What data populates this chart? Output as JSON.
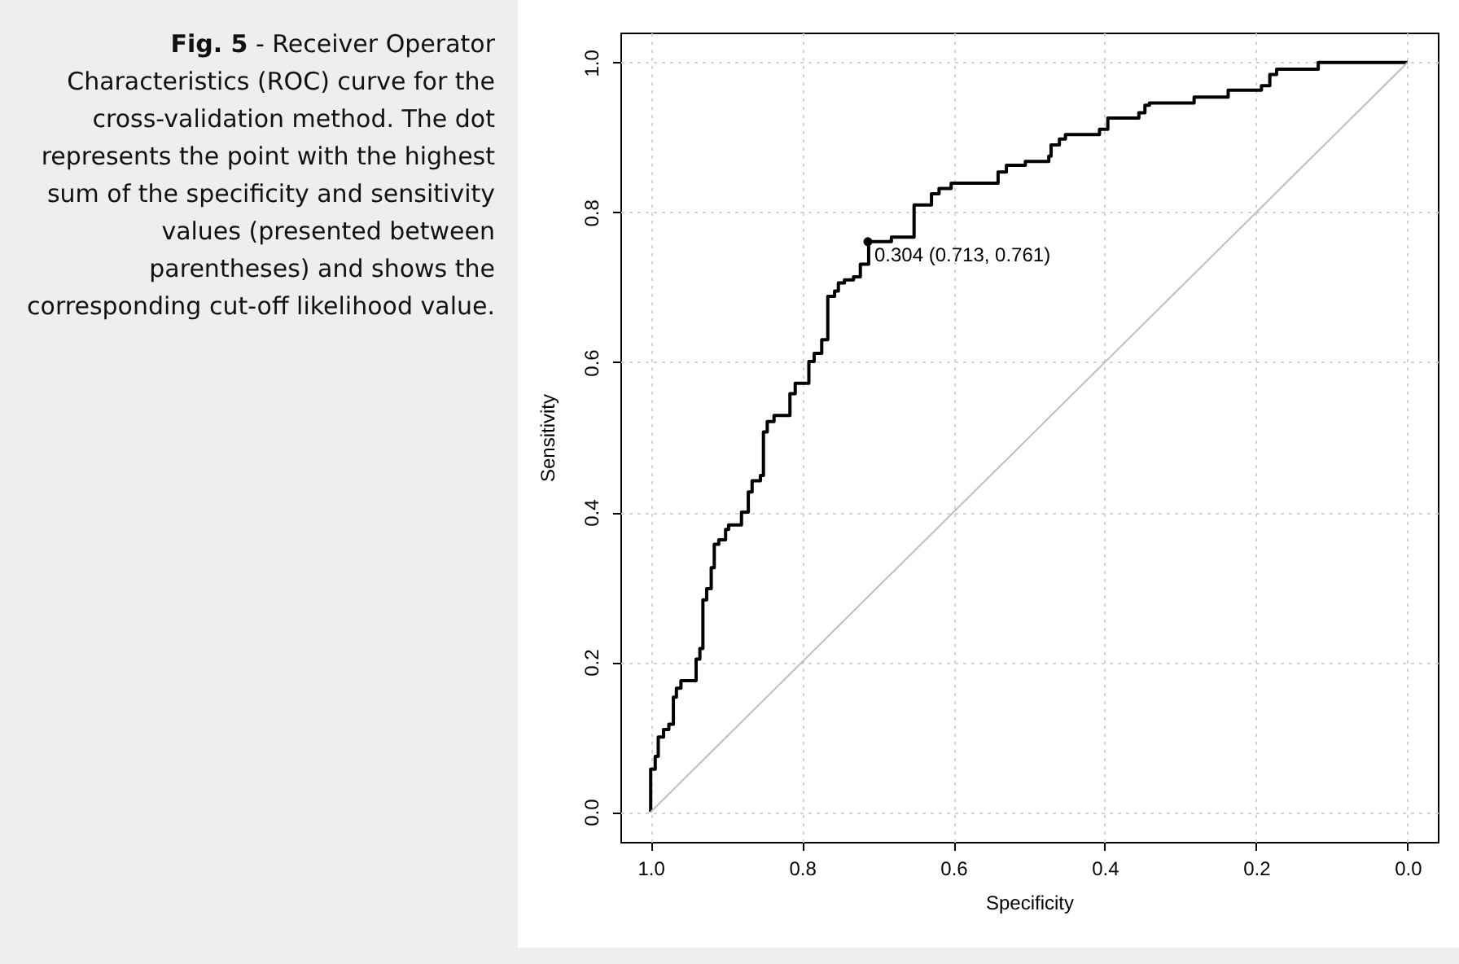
{
  "chart_data": {
    "type": "step",
    "xlabel": "Specificity",
    "ylabel": "Sensitivity",
    "xlim": [
      1.04,
      -0.04
    ],
    "ylim": [
      -0.04,
      1.04
    ],
    "xticks": [
      {
        "value": 1,
        "label": "1.0"
      },
      0.8,
      0.6,
      0.4,
      0.2,
      {
        "value": 0,
        "label": "0.0"
      }
    ],
    "yticks": [
      {
        "value": 0,
        "label": "0.0"
      },
      0.2,
      0.4,
      0.6,
      0.8,
      {
        "value": 1,
        "label": "1.0"
      }
    ],
    "grid": true,
    "series": [
      {
        "color": "#000000",
        "x": [
          1,
          0.994,
          0.99,
          0.983,
          0.976,
          0.97,
          0.966,
          0.96,
          0.94,
          0.935,
          0.931,
          0.926,
          0.92,
          0.916,
          0.91,
          0.901,
          0.897,
          0.88,
          0.871,
          0.866,
          0.855,
          0.851,
          0.846,
          0.837,
          0.816,
          0.809,
          0.791,
          0.784,
          0.774,
          0.766,
          0.757,
          0.752,
          0.744,
          0.732,
          0.723,
          0.712,
          0.682,
          0.652,
          0.629,
          0.619,
          0.603,
          0.541,
          0.53,
          0.505,
          0.474,
          0.471,
          0.46,
          0.452,
          0.407,
          0.396,
          0.355,
          0.347,
          0.341,
          0.282,
          0.237,
          0.193,
          0.182,
          0.173,
          0.118,
          0
        ],
        "values": [
          0,
          0.057,
          0.074,
          0.1,
          0.11,
          0.117,
          0.153,
          0.165,
          0.175,
          0.204,
          0.218,
          0.283,
          0.298,
          0.326,
          0.357,
          0.363,
          0.377,
          0.383,
          0.4,
          0.427,
          0.442,
          0.449,
          0.507,
          0.521,
          0.529,
          0.558,
          0.572,
          0.601,
          0.612,
          0.63,
          0.688,
          0.695,
          0.706,
          0.71,
          0.714,
          0.731,
          0.761,
          0.767,
          0.81,
          0.825,
          0.832,
          0.839,
          0.854,
          0.863,
          0.868,
          0.875,
          0.89,
          0.898,
          0.904,
          0.911,
          0.926,
          0.933,
          0.943,
          0.946,
          0.954,
          0.963,
          0.969,
          0.984,
          0.991,
          1
        ]
      },
      {
        "type": "line",
        "color": "#bebebe",
        "x": [
          1,
          0
        ],
        "values": [
          0,
          1
        ]
      },
      {
        "type": "scatter",
        "color": "#000000",
        "x": [
          0.713
        ],
        "values": [
          0.761
        ]
      }
    ],
    "annotations": [
      {
        "text": "0.304 (0.713, 0.761)",
        "x": 0.713,
        "y": 0.761
      },
      "Fig. 5 - Receiver Operator Characteristics (ROC) curve for the cross-validation method. The dot represents the point with the highest sum of the specificity and sensitivity values (presented between parentheses) and shows the corresponding cut-off likelihood value."
    ]
  }
}
